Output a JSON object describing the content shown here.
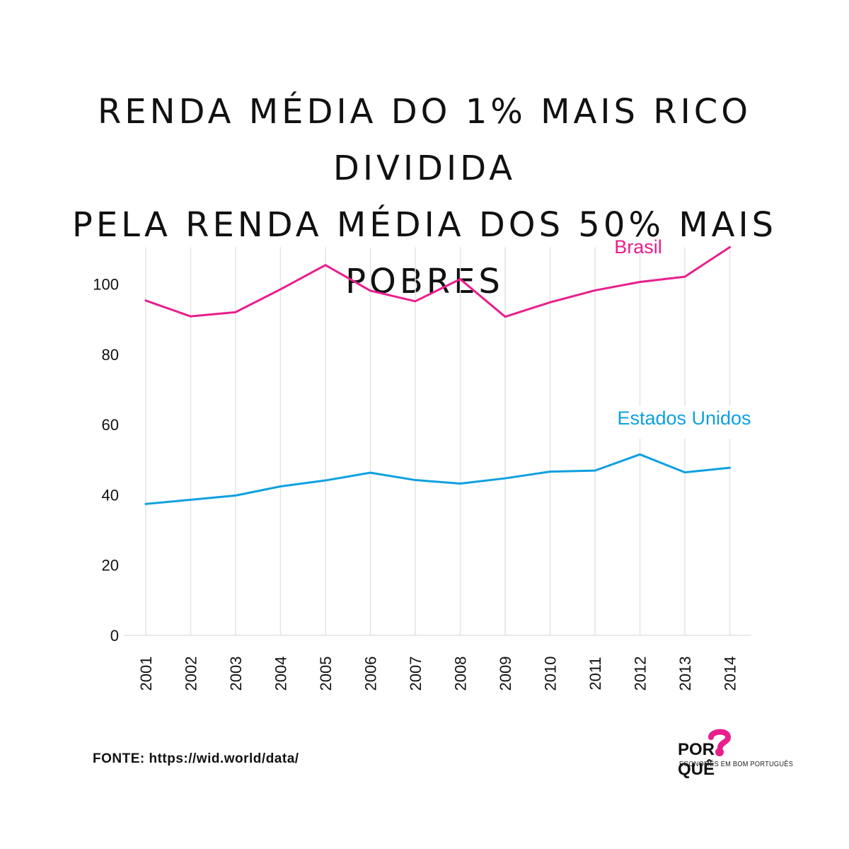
{
  "title": {
    "line1": "RENDA MÉDIA DO 1% MAIS RICO DIVIDIDA",
    "line2": "PELA RENDA MÉDIA DOS 50% MAIS POBRES"
  },
  "source": "FONTE: https://wid.world/data/",
  "logo": {
    "word_left": "POR",
    "word_right": "QUÊ",
    "tagline": "ECONOMÊS EM BOM PORTUGUÊS"
  },
  "colors": {
    "brasil": "#e91e8c",
    "estados_unidos": "#0ea0e0",
    "grid": "#e4e4e4"
  },
  "chart_data": {
    "type": "line",
    "x": [
      "2001",
      "2002",
      "2003",
      "2004",
      "2005",
      "2006",
      "2007",
      "2008",
      "2009",
      "2010",
      "2011",
      "2012",
      "2013",
      "2014"
    ],
    "series": [
      {
        "name": "Brasil",
        "values": [
          95.3,
          90.8,
          92.0,
          98.5,
          105.4,
          98.1,
          95.1,
          101.4,
          90.7,
          94.8,
          98.2,
          100.6,
          102.1,
          110.5
        ]
      },
      {
        "name": "Estados Unidos",
        "values": [
          37.4,
          38.6,
          39.8,
          42.4,
          44.1,
          46.3,
          44.2,
          43.2,
          44.7,
          46.6,
          46.9,
          51.5,
          46.4,
          47.7
        ]
      }
    ],
    "yticks": [
      0,
      20,
      40,
      60,
      80,
      100
    ],
    "ylim": [
      0,
      110.5
    ],
    "grid": "vertical",
    "legend": "inline labels at series ends"
  }
}
